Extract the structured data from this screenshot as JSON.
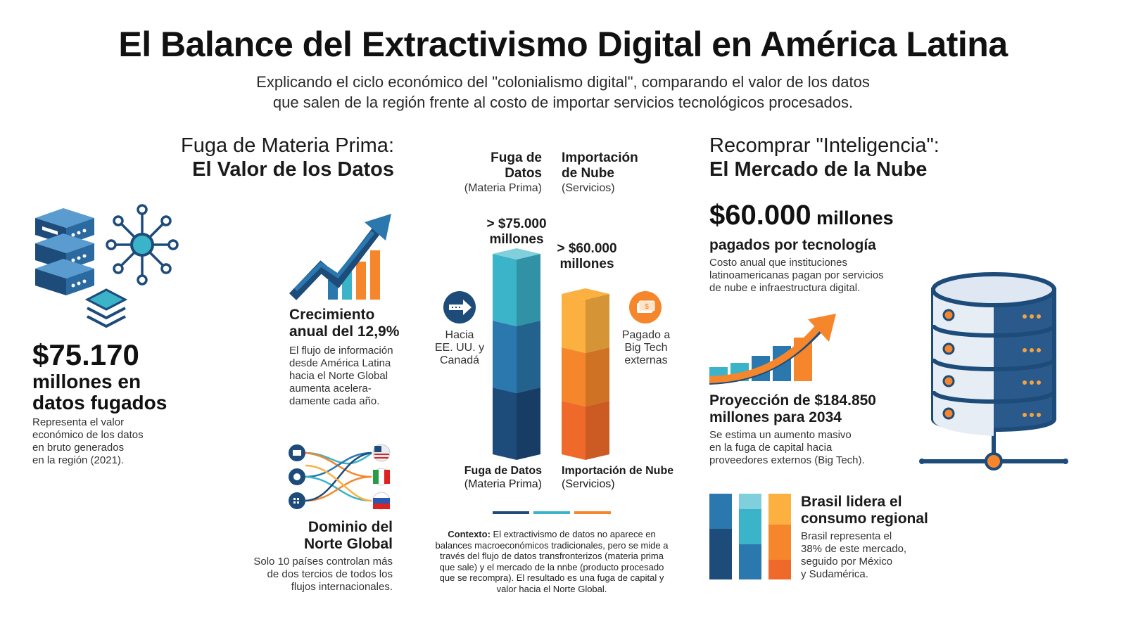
{
  "header": {
    "title": "El Balance del Extractivismo Digital en América Latina",
    "subtitle_line1": "Explicando el ciclo económico del \"colonialismo digital\", comparando el valor de los datos",
    "subtitle_line2": "que salen de la región frente al costo de importar servicios tecnológicos procesados."
  },
  "left": {
    "section_title_line1": "Fuga de Materia Prima:",
    "section_title_line2": "El Valor de los Datos",
    "stat_value": "$75.170",
    "stat_line1": "millones en",
    "stat_line2": "datos fugados",
    "stat_desc": [
      "Representa el valor",
      "económico de los datos",
      "en bruto generados",
      "en la región (2021)."
    ],
    "growth_title_line1": "Crecimiento",
    "growth_title_line2": "anual del 12,9%",
    "growth_desc": [
      "El flujo de información",
      "desde América Latina",
      "hacia el Norte Global",
      "aumenta acelera-",
      "damente cada año."
    ],
    "dominio_title_line1": "Dominio del",
    "dominio_title_line2": "Norte Global",
    "dominio_desc": [
      "Solo 10 países controlan más",
      "de dos tercios de todos los",
      "flujos internacionales."
    ]
  },
  "center": {
    "col1_head_line1": "Fuga de",
    "col1_head_line2": "Datos",
    "col1_sub": "(Materia Prima)",
    "col2_head_line1": "Importación",
    "col2_head_line2": "de Nube",
    "col2_sub": "(Servicios)",
    "bar1_label_line1": "> $75.000",
    "bar1_label_line2": "millones",
    "bar2_label_line1": "> $60.000",
    "bar2_label_line2": "millones",
    "left_note": [
      "Hacia",
      "EE. UU. y",
      "Canadá"
    ],
    "right_note": [
      "Pagado a",
      "Big Tech",
      "externas"
    ],
    "bottom1_line1": "Fuga de Datos",
    "bottom1_line2": "(Materia Prima)",
    "bottom2_line1": "Importación de Nube",
    "bottom2_line2": "(Servicios)",
    "context_label": "Contexto:",
    "context_lines": [
      " El extractivismo de datos no aparece en",
      "balances macroeconómicos tradicionales, pero se mide a",
      "través del flujo de datos transfronterizos (materia prima",
      "que sale) y el mercado de la nnbe (producto procesado",
      "que se recompra). El resultado es una fuga de capital y",
      "valor hacia el Norte Global."
    ]
  },
  "right": {
    "section_title_line1": "Recomprar \"Inteligencia\":",
    "section_title_line2": "El Mercado de la Nube",
    "stat_value": "$60.000",
    "stat_unit": " millones",
    "stat_line2": "pagados por tecnología",
    "stat_desc": [
      "Costo anual que instituciones",
      "latinoamericanas pagan por servicios",
      "de nube e infraestructura digital."
    ],
    "proj_title_line1": "Proyección de $184.850",
    "proj_title_line2": "millones para 2034",
    "proj_desc": [
      "Se estima un aumento masivo",
      "en la fuga de capital hacia",
      "proveedores externos (Big Tech)."
    ],
    "brasil_title_line1": "Brasil lidera el",
    "brasil_title_line2": "consumo regional",
    "brasil_desc": [
      "Brasil representa el",
      "38% de este mercado,",
      "seguido por México",
      "y Sudamérica."
    ]
  },
  "colors": {
    "navy": "#1d4b7a",
    "blue": "#2a78ad",
    "teal": "#3bb3c8",
    "orange": "#f5862b",
    "light_orange": "#fbb040"
  },
  "chart_data": {
    "type": "bar",
    "categories": [
      "Fuga de Datos (Materia Prima)",
      "Importación de Nube (Servicios)"
    ],
    "values": [
      75000,
      60000
    ],
    "unit": "millones"
  },
  "icons": [
    "server-stack-icon",
    "network-node-icon",
    "layers-icon",
    "growth-arrow-icon",
    "flow-map-icon",
    "arrow-right-icon",
    "money-icon",
    "growth-chart-icon",
    "database-icon",
    "stacked-bars-icon"
  ]
}
